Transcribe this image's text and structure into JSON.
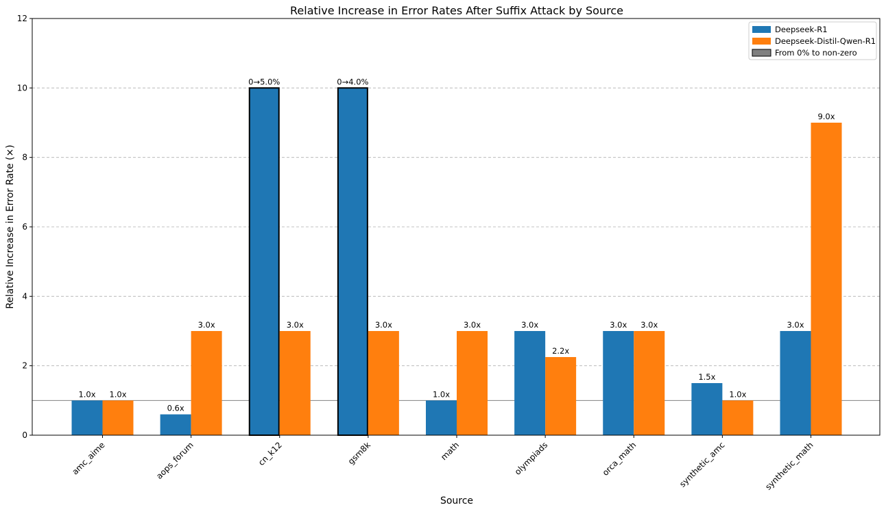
{
  "chart_data": {
    "type": "bar",
    "title": "Relative Increase in Error Rates After Suffix Attack by Source",
    "xlabel": "Source",
    "ylabel": "Relative Increase in Error Rate (×)",
    "ylim": [
      0,
      12
    ],
    "yticks": [
      0,
      2,
      4,
      6,
      8,
      10,
      12
    ],
    "grid": "y-dashed",
    "reference_line": 1,
    "legend_position": "top-right",
    "categories": [
      "amc_aime",
      "aops_forum",
      "cn_k12",
      "gsm8k",
      "math",
      "olympiads",
      "orca_math",
      "synthetic_amc",
      "synthetic_math"
    ],
    "series": [
      {
        "name": "Deepseek-R1",
        "color": "#1f77b4",
        "values": [
          1.0,
          0.6,
          10.0,
          10.0,
          1.0,
          3.0,
          3.0,
          1.5,
          3.0
        ],
        "labels": [
          "1.0x",
          "0.6x",
          "0→5.0%",
          "0→4.0%",
          "1.0x",
          "3.0x",
          "3.0x",
          "1.5x",
          "3.0x"
        ],
        "from_zero": [
          false,
          false,
          true,
          true,
          false,
          false,
          false,
          false,
          false
        ]
      },
      {
        "name": "Deepseek-Distil-Qwen-R1",
        "color": "#ff7f0e",
        "values": [
          1.0,
          3.0,
          3.0,
          3.0,
          3.0,
          2.25,
          3.0,
          1.0,
          9.0
        ],
        "labels": [
          "1.0x",
          "3.0x",
          "3.0x",
          "3.0x",
          "3.0x",
          "2.2x",
          "3.0x",
          "1.0x",
          "9.0x"
        ],
        "from_zero": [
          false,
          false,
          false,
          false,
          false,
          false,
          false,
          false,
          false
        ]
      }
    ],
    "legend": [
      {
        "label": "Deepseek-R1",
        "color": "#1f77b4"
      },
      {
        "label": "Deepseek-Distil-Qwen-R1",
        "color": "#ff7f0e"
      },
      {
        "label": "From 0% to non-zero",
        "color": "#808080"
      }
    ]
  }
}
